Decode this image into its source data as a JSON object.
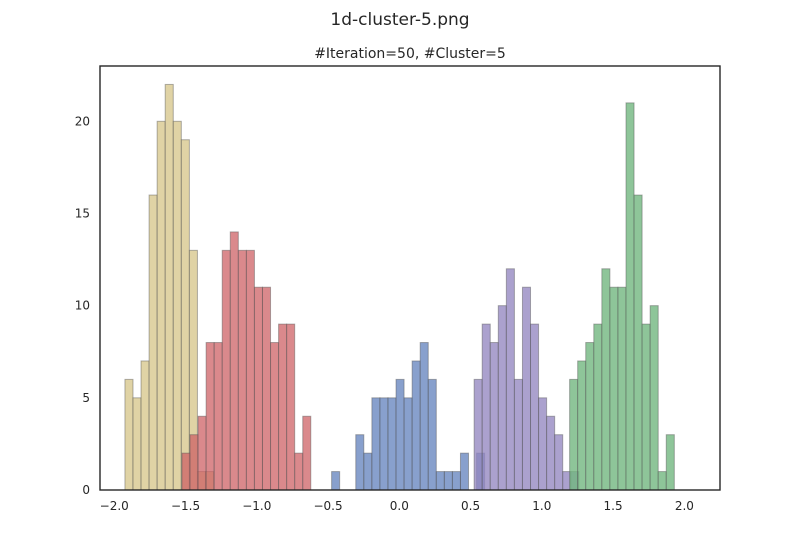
{
  "figure": {
    "suptitle": "1d-cluster-5.png"
  },
  "chart_data": {
    "type": "histogram",
    "title": "#Iteration=50, #Cluster=5",
    "xlabel": "",
    "ylabel": "",
    "xlim": [
      -2.1,
      2.25
    ],
    "ylim": [
      0,
      23
    ],
    "grid": false,
    "legend": "none",
    "x_ticks": [
      -2.0,
      -1.5,
      -1.0,
      -0.5,
      0.0,
      0.5,
      1.0,
      1.5,
      2.0
    ],
    "x_tick_labels": [
      "−2.0",
      "−1.5",
      "−1.0",
      "−0.5",
      "0.0",
      "0.5",
      "1.0",
      "1.5",
      "2.0"
    ],
    "y_ticks": [
      0,
      5,
      10,
      15,
      20
    ],
    "y_tick_labels": [
      "0",
      "5",
      "10",
      "15",
      "20"
    ],
    "series": [
      {
        "color": "#d8c88e",
        "opacity": 0.8,
        "bin_width": 0.0565,
        "bin_edges_start": -1.925,
        "counts": [
          6,
          5,
          7,
          16,
          20,
          22,
          20,
          19,
          13,
          1,
          1
        ]
      },
      {
        "color": "#cd6266",
        "opacity": 0.75,
        "bin_width": 0.0565,
        "bin_edges_start": -1.525,
        "counts": [
          2,
          3,
          4,
          8,
          8,
          13,
          14,
          13,
          13,
          11,
          11,
          8,
          9,
          9,
          2,
          4
        ]
      },
      {
        "color": "#5a7cba",
        "opacity": 0.72,
        "bin_width": 0.0565,
        "bin_edges_start": -0.475,
        "counts": [
          1,
          0,
          0,
          3,
          2,
          5,
          5,
          5,
          6,
          5,
          7,
          8,
          6,
          1,
          1,
          1,
          2,
          0,
          2
        ]
      },
      {
        "color": "#9486c0",
        "opacity": 0.78,
        "bin_width": 0.0565,
        "bin_edges_start": 0.525,
        "counts": [
          6,
          9,
          8,
          10,
          12,
          6,
          11,
          9,
          5,
          4,
          3,
          1,
          1
        ]
      },
      {
        "color": "#72b67f",
        "opacity": 0.8,
        "bin_width": 0.0565,
        "bin_edges_start": 1.195,
        "counts": [
          6,
          7,
          8,
          9,
          12,
          11,
          11,
          21,
          16,
          9,
          10,
          1,
          3
        ]
      }
    ]
  }
}
